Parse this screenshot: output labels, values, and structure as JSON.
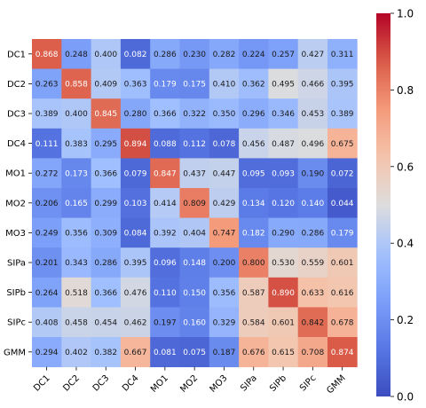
{
  "chart_data": {
    "type": "heatmap",
    "rows": [
      "DC1",
      "DC2",
      "DC3",
      "DC4",
      "MO1",
      "MO2",
      "MO3",
      "SIPa",
      "SIPb",
      "SIPc",
      "GMM"
    ],
    "columns": [
      "DC1",
      "DC2",
      "DC3",
      "DC4",
      "MO1",
      "MO2",
      "MO3",
      "SIPa",
      "SIPb",
      "SIPc",
      "GMM"
    ],
    "values": [
      [
        0.868,
        0.248,
        0.4,
        0.082,
        0.286,
        0.23,
        0.282,
        0.224,
        0.257,
        0.427,
        0.311
      ],
      [
        0.263,
        0.858,
        0.409,
        0.363,
        0.179,
        0.175,
        0.41,
        0.362,
        0.495,
        0.466,
        0.395
      ],
      [
        0.389,
        0.4,
        0.845,
        0.28,
        0.366,
        0.322,
        0.35,
        0.296,
        0.346,
        0.453,
        0.389
      ],
      [
        0.111,
        0.383,
        0.295,
        0.894,
        0.088,
        0.112,
        0.078,
        0.456,
        0.487,
        0.496,
        0.675
      ],
      [
        0.272,
        0.173,
        0.366,
        0.079,
        0.847,
        0.437,
        0.447,
        0.095,
        0.093,
        0.19,
        0.072
      ],
      [
        0.206,
        0.165,
        0.299,
        0.103,
        0.414,
        0.809,
        0.429,
        0.134,
        0.12,
        0.14,
        0.044
      ],
      [
        0.249,
        0.356,
        0.309,
        0.084,
        0.392,
        0.404,
        0.747,
        0.182,
        0.29,
        0.286,
        0.179
      ],
      [
        0.201,
        0.343,
        0.286,
        0.395,
        0.096,
        0.148,
        0.2,
        0.8,
        0.53,
        0.559,
        0.601
      ],
      [
        0.264,
        0.518,
        0.366,
        0.476,
        0.11,
        0.15,
        0.356,
        0.587,
        0.89,
        0.633,
        0.616
      ],
      [
        0.408,
        0.458,
        0.454,
        0.462,
        0.197,
        0.16,
        0.329,
        0.584,
        0.601,
        0.842,
        0.678
      ],
      [
        0.294,
        0.402,
        0.382,
        0.667,
        0.081,
        0.075,
        0.187,
        0.676,
        0.615,
        0.708,
        0.874
      ]
    ],
    "colormap": "coolwarm",
    "colorbar_range": [
      0.0,
      1.0
    ],
    "colorbar_ticks": [
      "0.0",
      "0.2",
      "0.4",
      "0.6",
      "0.8",
      "1.0"
    ],
    "title": "",
    "xlabel": "",
    "ylabel": ""
  }
}
